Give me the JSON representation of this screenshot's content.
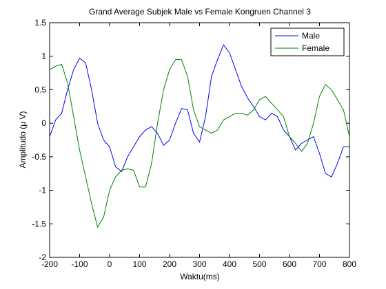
{
  "chart_data": {
    "type": "line",
    "title": "Grand Average Subjek Male vs Female Kongruen Channel 3",
    "xlabel": "Waktu(ms)",
    "ylabel": "Amplitudo (μ V)",
    "x": [
      -200,
      -180,
      -160,
      -140,
      -120,
      -100,
      -80,
      -60,
      -40,
      -20,
      0,
      20,
      40,
      60,
      80,
      100,
      120,
      140,
      160,
      180,
      200,
      220,
      240,
      260,
      280,
      300,
      320,
      340,
      360,
      380,
      400,
      420,
      440,
      460,
      480,
      500,
      520,
      540,
      560,
      580,
      600,
      620,
      640,
      660,
      680,
      700,
      720,
      740,
      760,
      780,
      800
    ],
    "series": [
      {
        "name": "Male",
        "color": "#0000ff",
        "values": [
          -0.2,
          0.05,
          0.15,
          0.5,
          0.8,
          0.97,
          0.9,
          0.5,
          0.0,
          -0.25,
          -0.35,
          -0.65,
          -0.72,
          -0.5,
          -0.35,
          -0.2,
          -0.1,
          -0.05,
          -0.15,
          -0.33,
          -0.25,
          0.0,
          0.22,
          0.2,
          -0.15,
          -0.28,
          0.1,
          0.7,
          0.95,
          1.17,
          1.05,
          0.8,
          0.55,
          0.38,
          0.25,
          0.1,
          0.05,
          0.15,
          0.1,
          -0.1,
          -0.2,
          -0.4,
          -0.3,
          -0.25,
          -0.2,
          -0.45,
          -0.75,
          -0.8,
          -0.6,
          -0.35,
          -0.35
        ]
      },
      {
        "name": "Female",
        "color": "#008000",
        "values": [
          0.8,
          0.85,
          0.88,
          0.6,
          0.1,
          -0.4,
          -0.8,
          -1.2,
          -1.55,
          -1.4,
          -1.0,
          -0.8,
          -0.7,
          -0.68,
          -0.7,
          -0.95,
          -0.95,
          -0.6,
          0.0,
          0.5,
          0.8,
          0.95,
          0.95,
          0.7,
          0.2,
          -0.05,
          -0.1,
          -0.15,
          -0.1,
          0.05,
          0.1,
          0.15,
          0.15,
          0.12,
          0.2,
          0.35,
          0.4,
          0.3,
          0.2,
          0.1,
          -0.2,
          -0.3,
          -0.42,
          -0.3,
          0.0,
          0.4,
          0.58,
          0.5,
          0.35,
          0.2,
          -0.2
        ]
      }
    ],
    "xlim": [
      -200,
      800
    ],
    "xticks": [
      -200,
      -100,
      0,
      100,
      200,
      300,
      400,
      500,
      600,
      700,
      800
    ],
    "ylim": [
      -2,
      1.5
    ],
    "yticks": [
      -2,
      -1.5,
      -1,
      -0.5,
      0,
      0.5,
      1,
      1.5
    ],
    "grid": false,
    "legend": "upper right"
  }
}
